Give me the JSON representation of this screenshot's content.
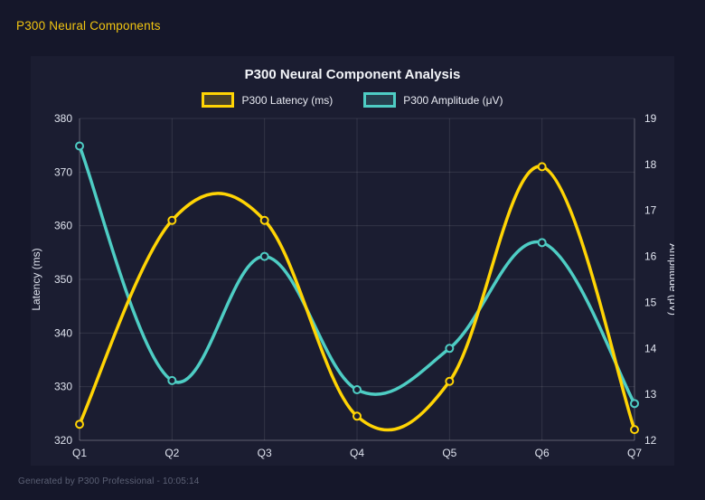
{
  "page": {
    "title": "P300 Neural Components",
    "footer": "Generated by P300 Professional - 10:05:14"
  },
  "colors": {
    "page_bg": "#15172a",
    "panel_bg": "#1b1d31",
    "grid": "rgba(255,255,255,0.10)",
    "axis_border": "rgba(255,255,255,0.22)",
    "tick_text": "#dfe3ee",
    "muted_text": "#5c6175",
    "header_yellow": "#f2c511"
  },
  "chart_data": {
    "type": "line",
    "title": "P300 Neural Component Analysis",
    "categories": [
      "Q1",
      "Q2",
      "Q3",
      "Q4",
      "Q5",
      "Q6",
      "Q7"
    ],
    "series": [
      {
        "name": "P300 Latency (ms)",
        "color": "#FFD404",
        "axis": "left",
        "values": [
          323,
          361,
          361,
          324.5,
          331,
          371,
          322
        ]
      },
      {
        "name": "P300 Amplitude (μV)",
        "color": "#4ECDC4",
        "axis": "right",
        "values": [
          18.4,
          13.3,
          16.0,
          13.1,
          14.0,
          16.3,
          12.8
        ]
      }
    ],
    "axes": {
      "left": {
        "title": "Latency (ms)",
        "min": 320,
        "max": 380,
        "ticks": [
          380,
          370,
          360,
          350,
          340,
          330,
          320
        ]
      },
      "right": {
        "title": "Amplitude (μV)",
        "min": 12,
        "max": 19,
        "ticks": [
          19,
          18,
          17,
          16,
          15,
          14,
          13,
          12
        ]
      }
    },
    "legend_position": "top",
    "grid": true,
    "smoothing": "spline"
  }
}
